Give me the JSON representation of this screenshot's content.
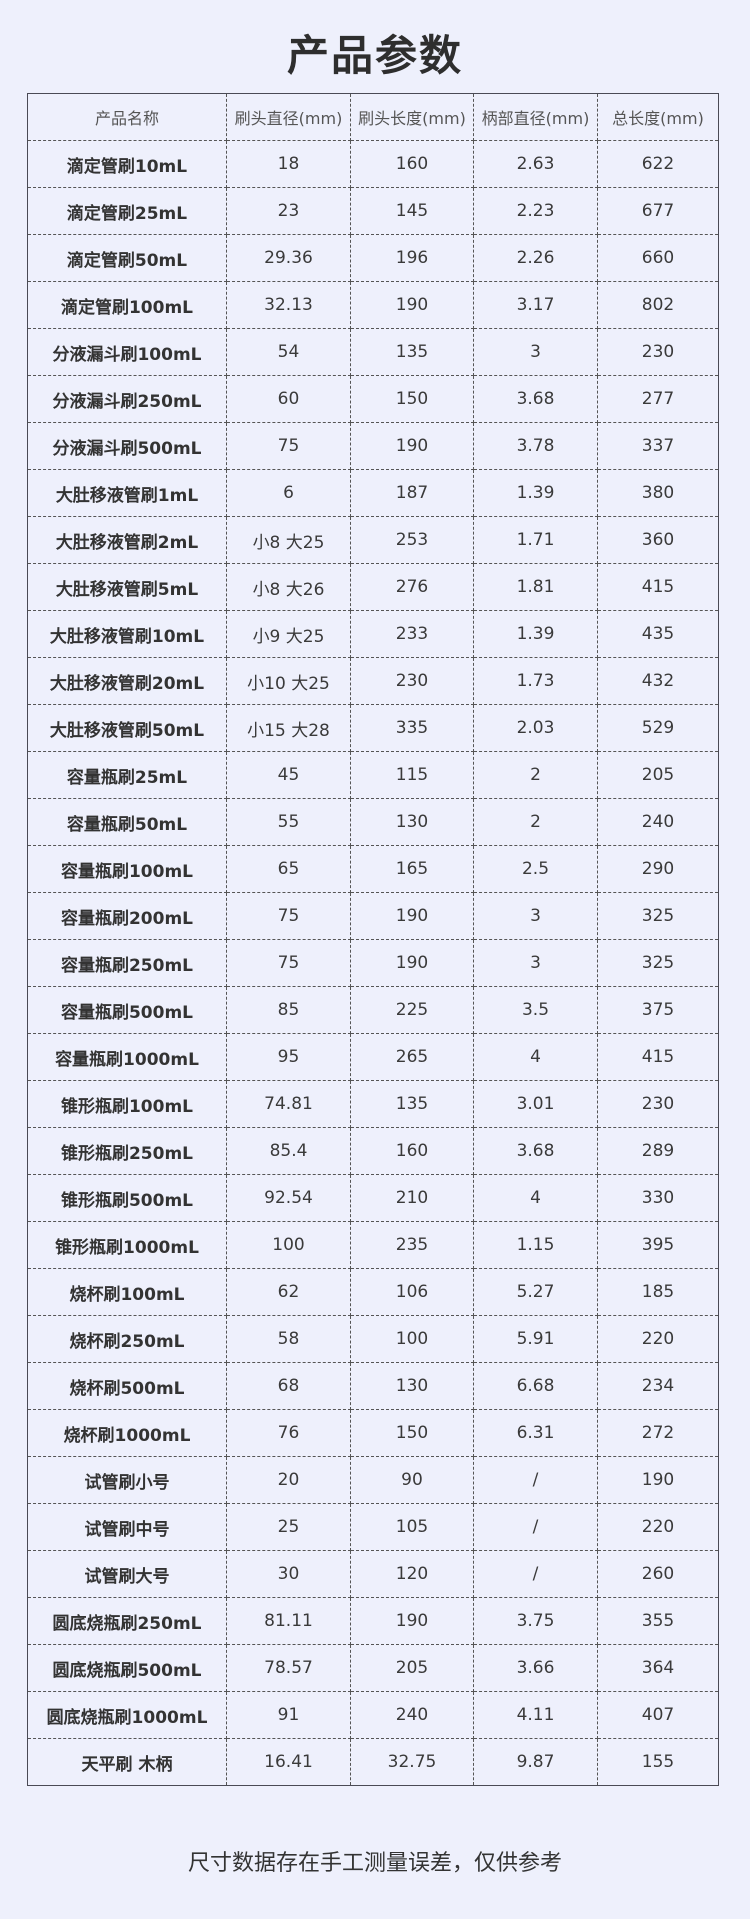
{
  "title": "产品参数",
  "headers": [
    "产品名称",
    "刷头直径(mm)",
    "刷头长度(mm)",
    "柄部直径(mm)",
    "总长度(mm)"
  ],
  "rows": [
    [
      "滴定管刷10mL",
      "18",
      "160",
      "2.63",
      "622"
    ],
    [
      "滴定管刷25mL",
      "23",
      "145",
      "2.23",
      "677"
    ],
    [
      "滴定管刷50mL",
      "29.36",
      "196",
      "2.26",
      "660"
    ],
    [
      "滴定管刷100mL",
      "32.13",
      "190",
      "3.17",
      "802"
    ],
    [
      "分液漏斗刷100mL",
      "54",
      "135",
      "3",
      "230"
    ],
    [
      "分液漏斗刷250mL",
      "60",
      "150",
      "3.68",
      "277"
    ],
    [
      "分液漏斗刷500mL",
      "75",
      "190",
      "3.78",
      "337"
    ],
    [
      "大肚移液管刷1mL",
      "6",
      "187",
      "1.39",
      "380"
    ],
    [
      "大肚移液管刷2mL",
      "小8 大25",
      "253",
      "1.71",
      "360"
    ],
    [
      "大肚移液管刷5mL",
      "小8 大26",
      "276",
      "1.81",
      "415"
    ],
    [
      "大肚移液管刷10mL",
      "小9 大25",
      "233",
      "1.39",
      "435"
    ],
    [
      "大肚移液管刷20mL",
      "小10 大25",
      "230",
      "1.73",
      "432"
    ],
    [
      "大肚移液管刷50mL",
      "小15 大28",
      "335",
      "2.03",
      "529"
    ],
    [
      "容量瓶刷25mL",
      "45",
      "115",
      "2",
      "205"
    ],
    [
      "容量瓶刷50mL",
      "55",
      "130",
      "2",
      "240"
    ],
    [
      "容量瓶刷100mL",
      "65",
      "165",
      "2.5",
      "290"
    ],
    [
      "容量瓶刷200mL",
      "75",
      "190",
      "3",
      "325"
    ],
    [
      "容量瓶刷250mL",
      "75",
      "190",
      "3",
      "325"
    ],
    [
      "容量瓶刷500mL",
      "85",
      "225",
      "3.5",
      "375"
    ],
    [
      "容量瓶刷1000mL",
      "95",
      "265",
      "4",
      "415"
    ],
    [
      "锥形瓶刷100mL",
      "74.81",
      "135",
      "3.01",
      "230"
    ],
    [
      "锥形瓶刷250mL",
      "85.4",
      "160",
      "3.68",
      "289"
    ],
    [
      "锥形瓶刷500mL",
      "92.54",
      "210",
      "4",
      "330"
    ],
    [
      "锥形瓶刷1000mL",
      "100",
      "235",
      "1.15",
      "395"
    ],
    [
      "烧杯刷100mL",
      "62",
      "106",
      "5.27",
      "185"
    ],
    [
      "烧杯刷250mL",
      "58",
      "100",
      "5.91",
      "220"
    ],
    [
      "烧杯刷500mL",
      "68",
      "130",
      "6.68",
      "234"
    ],
    [
      "烧杯刷1000mL",
      "76",
      "150",
      "6.31",
      "272"
    ],
    [
      "试管刷小号",
      "20",
      "90",
      "/",
      "190"
    ],
    [
      "试管刷中号",
      "25",
      "105",
      "/",
      "220"
    ],
    [
      "试管刷大号",
      "30",
      "120",
      "/",
      "260"
    ],
    [
      "圆底烧瓶刷250mL",
      "81.11",
      "190",
      "3.75",
      "355"
    ],
    [
      "圆底烧瓶刷500mL",
      "78.57",
      "205",
      "3.66",
      "364"
    ],
    [
      "圆底烧瓶刷1000mL",
      "91",
      "240",
      "4.11",
      "407"
    ],
    [
      "天平刷 木柄",
      "16.41",
      "32.75",
      "9.87",
      "155"
    ]
  ],
  "footer": "尺寸数据存在手工测量误差，仅供参考"
}
